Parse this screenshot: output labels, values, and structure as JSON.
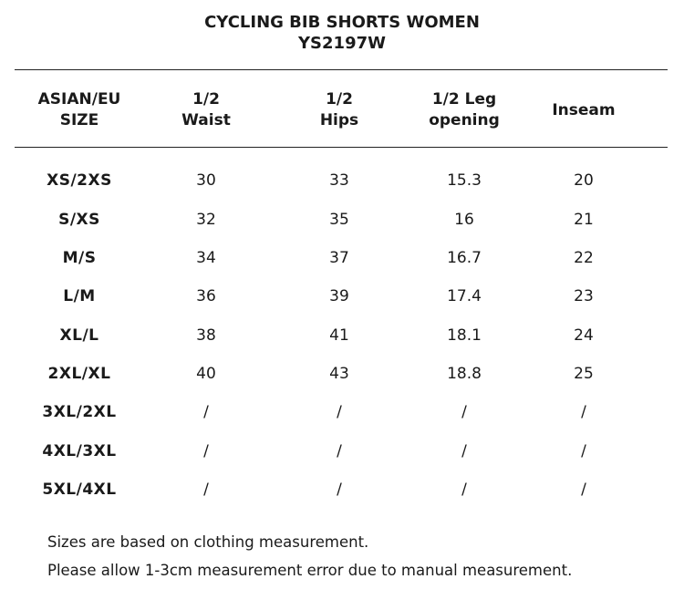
{
  "title": {
    "line1": "CYCLING BIB SHORTS WOMEN",
    "line2": "YS2197W"
  },
  "table": {
    "headers": [
      [
        "ASIAN/EU",
        "SIZE"
      ],
      [
        "1/2",
        "Waist"
      ],
      [
        "1/2",
        "Hips"
      ],
      [
        "1/2 Leg",
        "opening"
      ],
      [
        "Inseam"
      ]
    ],
    "rows": [
      [
        "XS/2XS",
        "30",
        "33",
        "15.3",
        "20"
      ],
      [
        "S/XS",
        "32",
        "35",
        "16",
        "21"
      ],
      [
        "M/S",
        "34",
        "37",
        "16.7",
        "22"
      ],
      [
        "L/M",
        "36",
        "39",
        "17.4",
        "23"
      ],
      [
        "XL/L",
        "38",
        "41",
        "18.1",
        "24"
      ],
      [
        "2XL/XL",
        "40",
        "43",
        "18.8",
        "25"
      ],
      [
        "3XL/2XL",
        "/",
        "/",
        "/",
        "/"
      ],
      [
        "4XL/3XL",
        "/",
        "/",
        "/",
        "/"
      ],
      [
        "5XL/4XL",
        "/",
        "/",
        "/",
        "/"
      ]
    ]
  },
  "notes": {
    "line1": "Sizes are based on clothing measurement.",
    "line2": "Please allow 1-3cm measurement error due to manual measurement."
  }
}
